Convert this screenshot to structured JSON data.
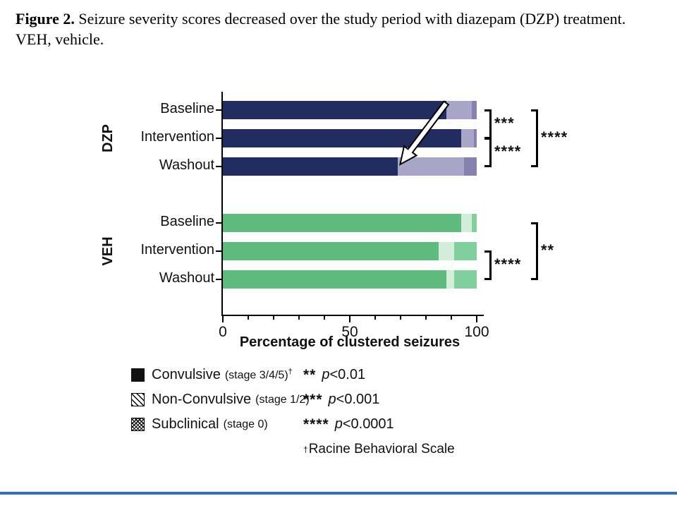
{
  "caption": {
    "label": "Figure 2.",
    "text": "Seizure severity scores decreased over the study period with diazepam (DZP) treatment. VEH, vehicle."
  },
  "chart_data": {
    "type": "bar",
    "orientation": "horizontal",
    "stacked": true,
    "title": "",
    "xlabel": "Percentage of clustered seizures",
    "ylabel": "",
    "xlim": [
      0,
      100
    ],
    "xticks": [
      0,
      50,
      100
    ],
    "minor_tick_step": 10,
    "groups": [
      {
        "name": "DZP",
        "categories": [
          "Baseline",
          "Intervention",
          "Washout"
        ],
        "series": [
          {
            "name": "Convulsive (stage 3/4/5)",
            "color": "#232c5f",
            "values": [
              88,
              94,
              69
            ]
          },
          {
            "name": "Non-Convulsive (stage 1/2)",
            "color": "#a9a5c9",
            "values": [
              10,
              5,
              26
            ]
          },
          {
            "name": "Subclinical (stage 0)",
            "color": "#8781b0",
            "values": [
              2,
              1,
              5
            ]
          }
        ],
        "significance": [
          {
            "from": "Baseline",
            "to": "Intervention",
            "label": "***",
            "level": "inner"
          },
          {
            "from": "Intervention",
            "to": "Washout",
            "label": "****",
            "level": "inner"
          },
          {
            "from": "Baseline",
            "to": "Washout",
            "label": "****",
            "level": "outer"
          }
        ]
      },
      {
        "name": "VEH",
        "categories": [
          "Baseline",
          "Intervention",
          "Washout"
        ],
        "series": [
          {
            "name": "Convulsive (stage 3/4/5)",
            "color": "#5eba7d",
            "values": [
              94,
              85,
              88
            ]
          },
          {
            "name": "Non-Convulsive (stage 1/2)",
            "color": "#d4ecda",
            "values": [
              4,
              6,
              3
            ]
          },
          {
            "name": "Subclinical (stage 0)",
            "color": "#82cf9e",
            "values": [
              2,
              9,
              9
            ]
          }
        ],
        "significance": [
          {
            "from": "Intervention",
            "to": "Washout",
            "label": "****",
            "level": "inner"
          },
          {
            "from": "Baseline",
            "to": "Washout",
            "label": "**",
            "level": "outer"
          }
        ]
      }
    ],
    "annotation_arrow": {
      "group": "DZP",
      "from_category": "Baseline",
      "from_value": 88,
      "to_category": "Washout",
      "to_value": 69
    }
  },
  "legend": {
    "items": [
      {
        "label": "Convulsive",
        "stage": "(stage 3/4/5)",
        "sup": "†",
        "pattern": "solid"
      },
      {
        "label": "Non-Convulsive",
        "stage": "(stage 1/2)",
        "sup": "",
        "pattern": "diagonal"
      },
      {
        "label": "Subclinical",
        "stage": "(stage 0)",
        "sup": "",
        "pattern": "dense"
      }
    ]
  },
  "stats": {
    "rows": [
      {
        "stars": "**",
        "p": "p",
        "value": "<0.01"
      },
      {
        "stars": "***",
        "p": "p",
        "value": "<0.001"
      },
      {
        "stars": "****",
        "p": "p",
        "value": "<0.0001"
      }
    ],
    "footnote": {
      "sup": "†",
      "text": "Racine Behavioral Scale"
    }
  },
  "design": {
    "footer_line_color": "#2e74b5",
    "axis_color": "#000000"
  }
}
